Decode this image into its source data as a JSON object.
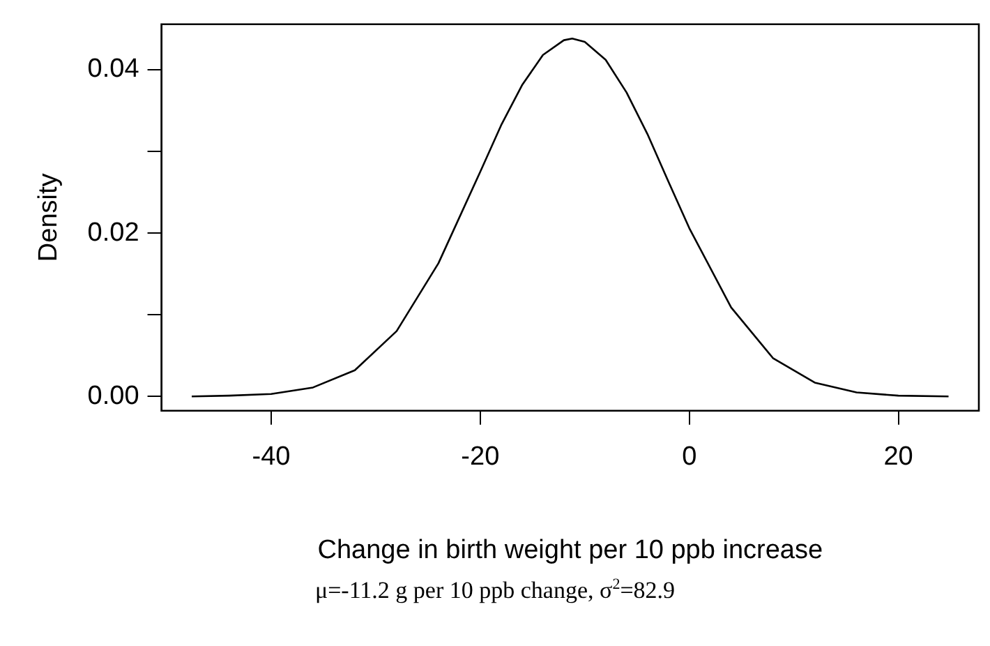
{
  "chart_data": {
    "type": "line",
    "xlabel": "Change in birth weight per 10 ppb increase",
    "ylabel": "Density",
    "annotations": [
      "μ=-11.2 g per 10 ppb change, σ$^{2}$=82.9"
    ],
    "x": [
      -47.6,
      -44,
      -40,
      -36,
      -32,
      -28,
      -24,
      -20,
      -18,
      -16,
      -14,
      -12,
      -11.2,
      -10,
      -8,
      -6,
      -4,
      -2,
      0,
      4,
      8,
      12,
      16,
      20,
      24.8
    ],
    "series": [
      {
        "color": "#000000",
        "values": [
          0.0,
          0.0001,
          0.0003,
          0.0011,
          0.0032,
          0.008,
          0.0163,
          0.0275,
          0.0332,
          0.0381,
          0.0418,
          0.0436,
          0.0438,
          0.0434,
          0.0412,
          0.0372,
          0.0321,
          0.0263,
          0.0206,
          0.0109,
          0.0047,
          0.0017,
          0.0005,
          0.0001,
          0.0
        ]
      }
    ],
    "xlim": [
      -50.5,
      27.7
    ],
    "ylim": [
      -0.00175,
      0.04555
    ],
    "xticks": [
      -40,
      -20,
      0,
      20
    ],
    "yticks": [
      {
        "value": 0,
        "label": "0.00"
      },
      {
        "value": 0.01,
        "label": null
      },
      0.02,
      {
        "value": 0.03,
        "label": null
      },
      0.04
    ],
    "grid": false,
    "marker": "none",
    "line_style": "solid"
  }
}
